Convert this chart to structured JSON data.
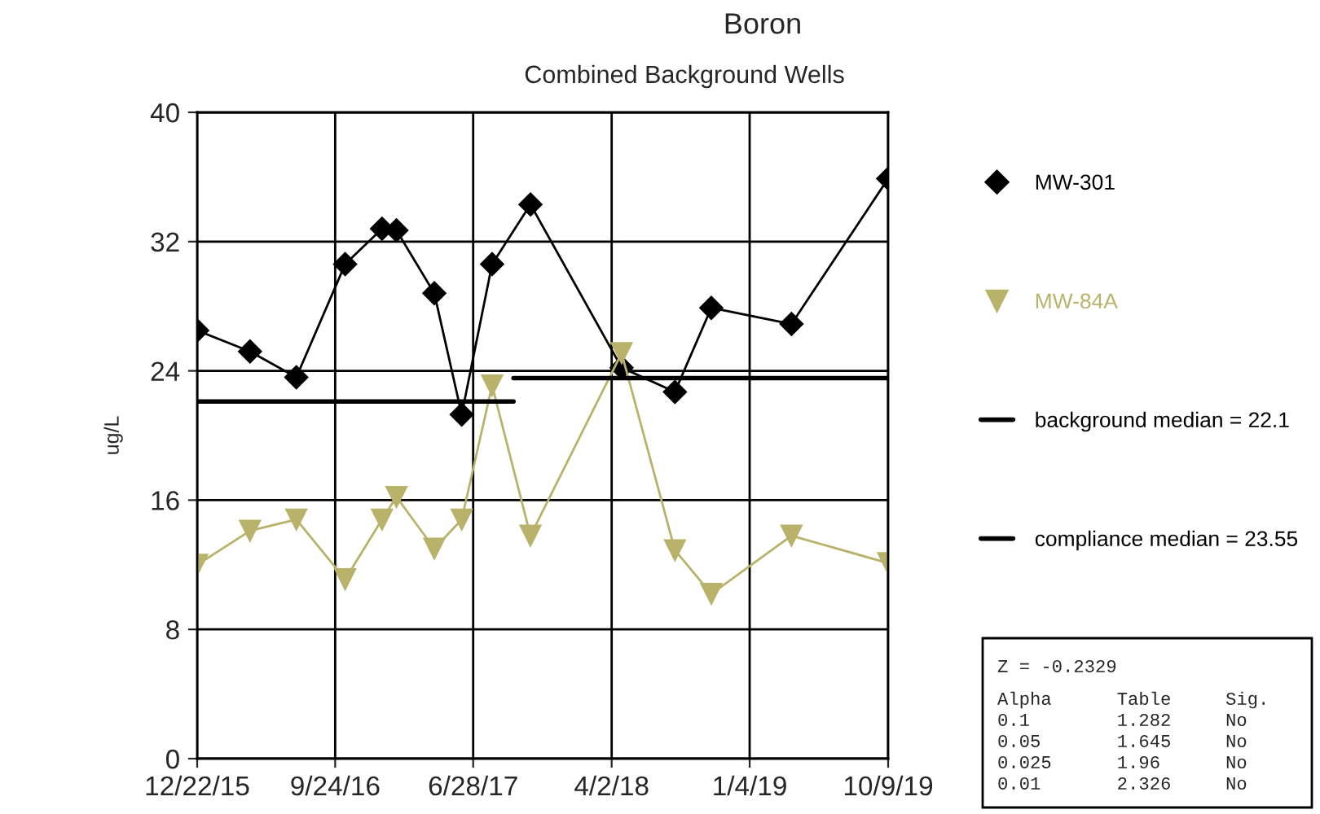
{
  "chart_data": {
    "type": "line",
    "title": "Boron",
    "subtitle": "Combined Background Wells",
    "ylabel": "ug/L",
    "xlim": [
      "2015-12-22",
      "2019-10-09"
    ],
    "xticks": [
      {
        "value": "2015-12-22",
        "label": "12/22/15"
      },
      {
        "value": "2016-09-24",
        "label": "9/24/16"
      },
      {
        "value": "2017-06-28",
        "label": "6/28/17"
      },
      {
        "value": "2018-04-02",
        "label": "4/2/18"
      },
      {
        "value": "2019-01-04",
        "label": "1/4/19"
      },
      {
        "value": "2019-10-09",
        "label": "10/9/19"
      }
    ],
    "ylim": [
      0,
      40
    ],
    "yticks": [
      0,
      8,
      16,
      24,
      32,
      40
    ],
    "grid": true,
    "legend": "right",
    "x": [
      "2015-12-22",
      "2016-04-06",
      "2016-07-08",
      "2016-10-14",
      "2016-12-27",
      "2017-01-25",
      "2017-04-11",
      "2017-06-05",
      "2017-08-05",
      "2017-10-21",
      "2018-04-22",
      "2018-08-07",
      "2018-10-19",
      "2019-03-29",
      "2019-10-09"
    ],
    "series": [
      {
        "name": "MW-301",
        "color": "#000000",
        "marker": "diamond",
        "values": [
          26.5,
          25.2,
          23.6,
          30.6,
          32.8,
          32.7,
          28.8,
          21.3,
          30.6,
          34.3,
          24.2,
          22.7,
          27.9,
          26.9,
          35.9
        ]
      },
      {
        "name": "MW-84A",
        "color": "#b8b26a",
        "marker": "triangle",
        "values": [
          12.0,
          14.1,
          14.8,
          11.1,
          14.8,
          16.2,
          13.0,
          14.8,
          23.1,
          13.8,
          25.1,
          12.9,
          10.2,
          13.8,
          12.1
        ]
      },
      {
        "name": "background median = 22.1",
        "color": "#000000",
        "marker": "none",
        "x": [
          "2015-12-22",
          "2017-09-17"
        ],
        "values": [
          22.1,
          22.1
        ]
      },
      {
        "name": "compliance median = 23.55",
        "color": "#000000",
        "marker": "none",
        "x": [
          "2017-09-17",
          "2019-10-09"
        ],
        "values": [
          23.55,
          23.55
        ]
      }
    ],
    "annotations": [
      "Z = -0.2329",
      "Alpha      Table     Sig.",
      "0.1        1.282     No",
      "0.05       1.645     No",
      "0.025      1.96      No",
      "0.01       2.326     No"
    ]
  }
}
